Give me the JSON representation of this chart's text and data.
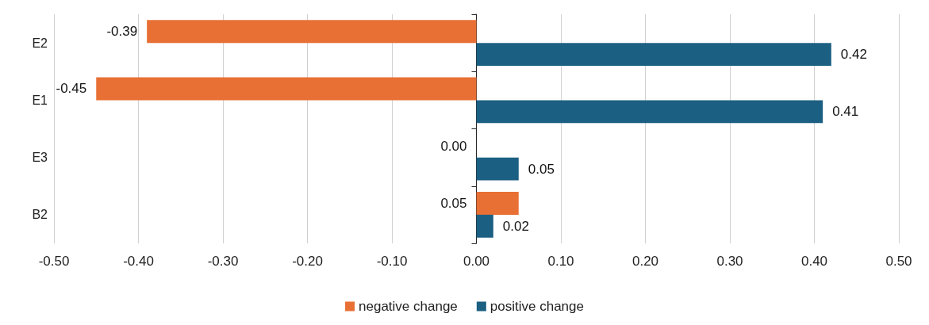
{
  "chart_data": {
    "type": "bar",
    "orientation": "horizontal",
    "categories": [
      "E2",
      "E1",
      "E3",
      "B2"
    ],
    "series": [
      {
        "name": "negative change",
        "color": "#e87035",
        "values": [
          -0.39,
          -0.45,
          0,
          0.05
        ],
        "value_labels": [
          "-0.39",
          "-0.45",
          "0.00",
          "0.05"
        ]
      },
      {
        "name": "positive change",
        "color": "#1b5f82",
        "values": [
          0.42,
          0.41,
          0.05,
          0.02
        ],
        "value_labels": [
          "0.42",
          "0.41",
          "0.05",
          "0.02"
        ]
      }
    ],
    "xlim": [
      -0.5,
      0.5
    ],
    "xticks": [
      {
        "value": -0.5,
        "label": "-0.50"
      },
      {
        "value": -0.4,
        "label": "-0.40"
      },
      {
        "value": -0.3,
        "label": "-0.30"
      },
      {
        "value": -0.2,
        "label": "-0.20"
      },
      {
        "value": -0.1,
        "label": "-0.10"
      },
      {
        "value": 0,
        "label": "0.00"
      },
      {
        "value": 0.1,
        "label": "0.10"
      },
      {
        "value": 0.2,
        "label": "0.20"
      },
      {
        "value": 0.3,
        "label": "0.30"
      },
      {
        "value": 0.4,
        "label": "0.40"
      },
      {
        "value": 0.5,
        "label": "0.50"
      }
    ],
    "grid": "x",
    "legend": "bottom"
  }
}
